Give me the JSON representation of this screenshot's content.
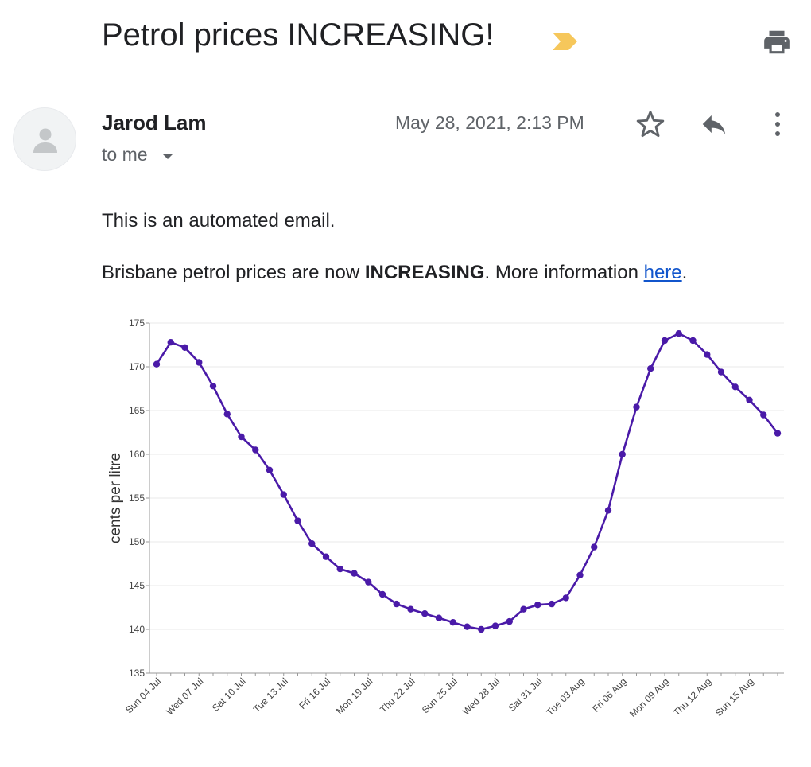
{
  "email": {
    "subject": "Petrol prices INCREASING!",
    "sender": "Jarod Lam",
    "recipient": "to me",
    "date": "May 28, 2021, 2:13 PM",
    "body": {
      "line1": "This is an automated email.",
      "line2_prefix": "Brisbane petrol prices are now ",
      "line2_bold": "INCREASING",
      "line2_mid": ". More information ",
      "link_text": "here",
      "line2_suffix": "."
    }
  },
  "icons": {
    "importance": "importance-marker-icon",
    "print": "print-icon",
    "avatar": "person-icon",
    "star": "star-icon",
    "reply": "reply-icon",
    "more": "more-vert-icon",
    "caret": "caret-down-icon"
  },
  "colors": {
    "line": "#4a1aa8",
    "importance": "#f6c75b",
    "link": "#1155cc"
  },
  "chart_data": {
    "type": "line",
    "ylabel": "cents per litre",
    "xlabel": "",
    "ylim": [
      135,
      175
    ],
    "yticks": [
      135,
      140,
      145,
      150,
      155,
      160,
      165,
      170,
      175
    ],
    "grid": true,
    "xtick_labels": [
      "Sun 04 Jul",
      "Wed 07 Jul",
      "Sat 10 Jul",
      "Tue 13 Jul",
      "Fri 16 Jul",
      "Mon 19 Jul",
      "Thu 22 Jul",
      "Sun 25 Jul",
      "Wed 28 Jul",
      "Sat 31 Jul",
      "Tue 03 Aug",
      "Fri 06 Aug",
      "Mon 09 Aug",
      "Thu 12 Aug",
      "Sun 15 Aug"
    ],
    "series": [
      {
        "values": [
          170.3,
          172.8,
          172.2,
          170.5,
          167.8,
          164.6,
          162.0,
          160.5,
          158.2,
          155.4,
          152.4,
          149.8,
          148.3,
          146.9,
          146.4,
          145.4,
          144.0,
          142.9,
          142.3,
          141.8,
          141.3,
          140.8,
          140.3,
          140.0,
          140.4,
          140.9,
          142.3,
          142.8,
          142.9,
          143.6,
          146.2,
          149.4,
          153.6,
          160.0,
          165.4,
          169.8,
          173.0,
          173.8,
          173.0,
          171.4,
          169.4,
          167.7,
          166.2,
          164.5,
          162.4
        ]
      }
    ]
  }
}
